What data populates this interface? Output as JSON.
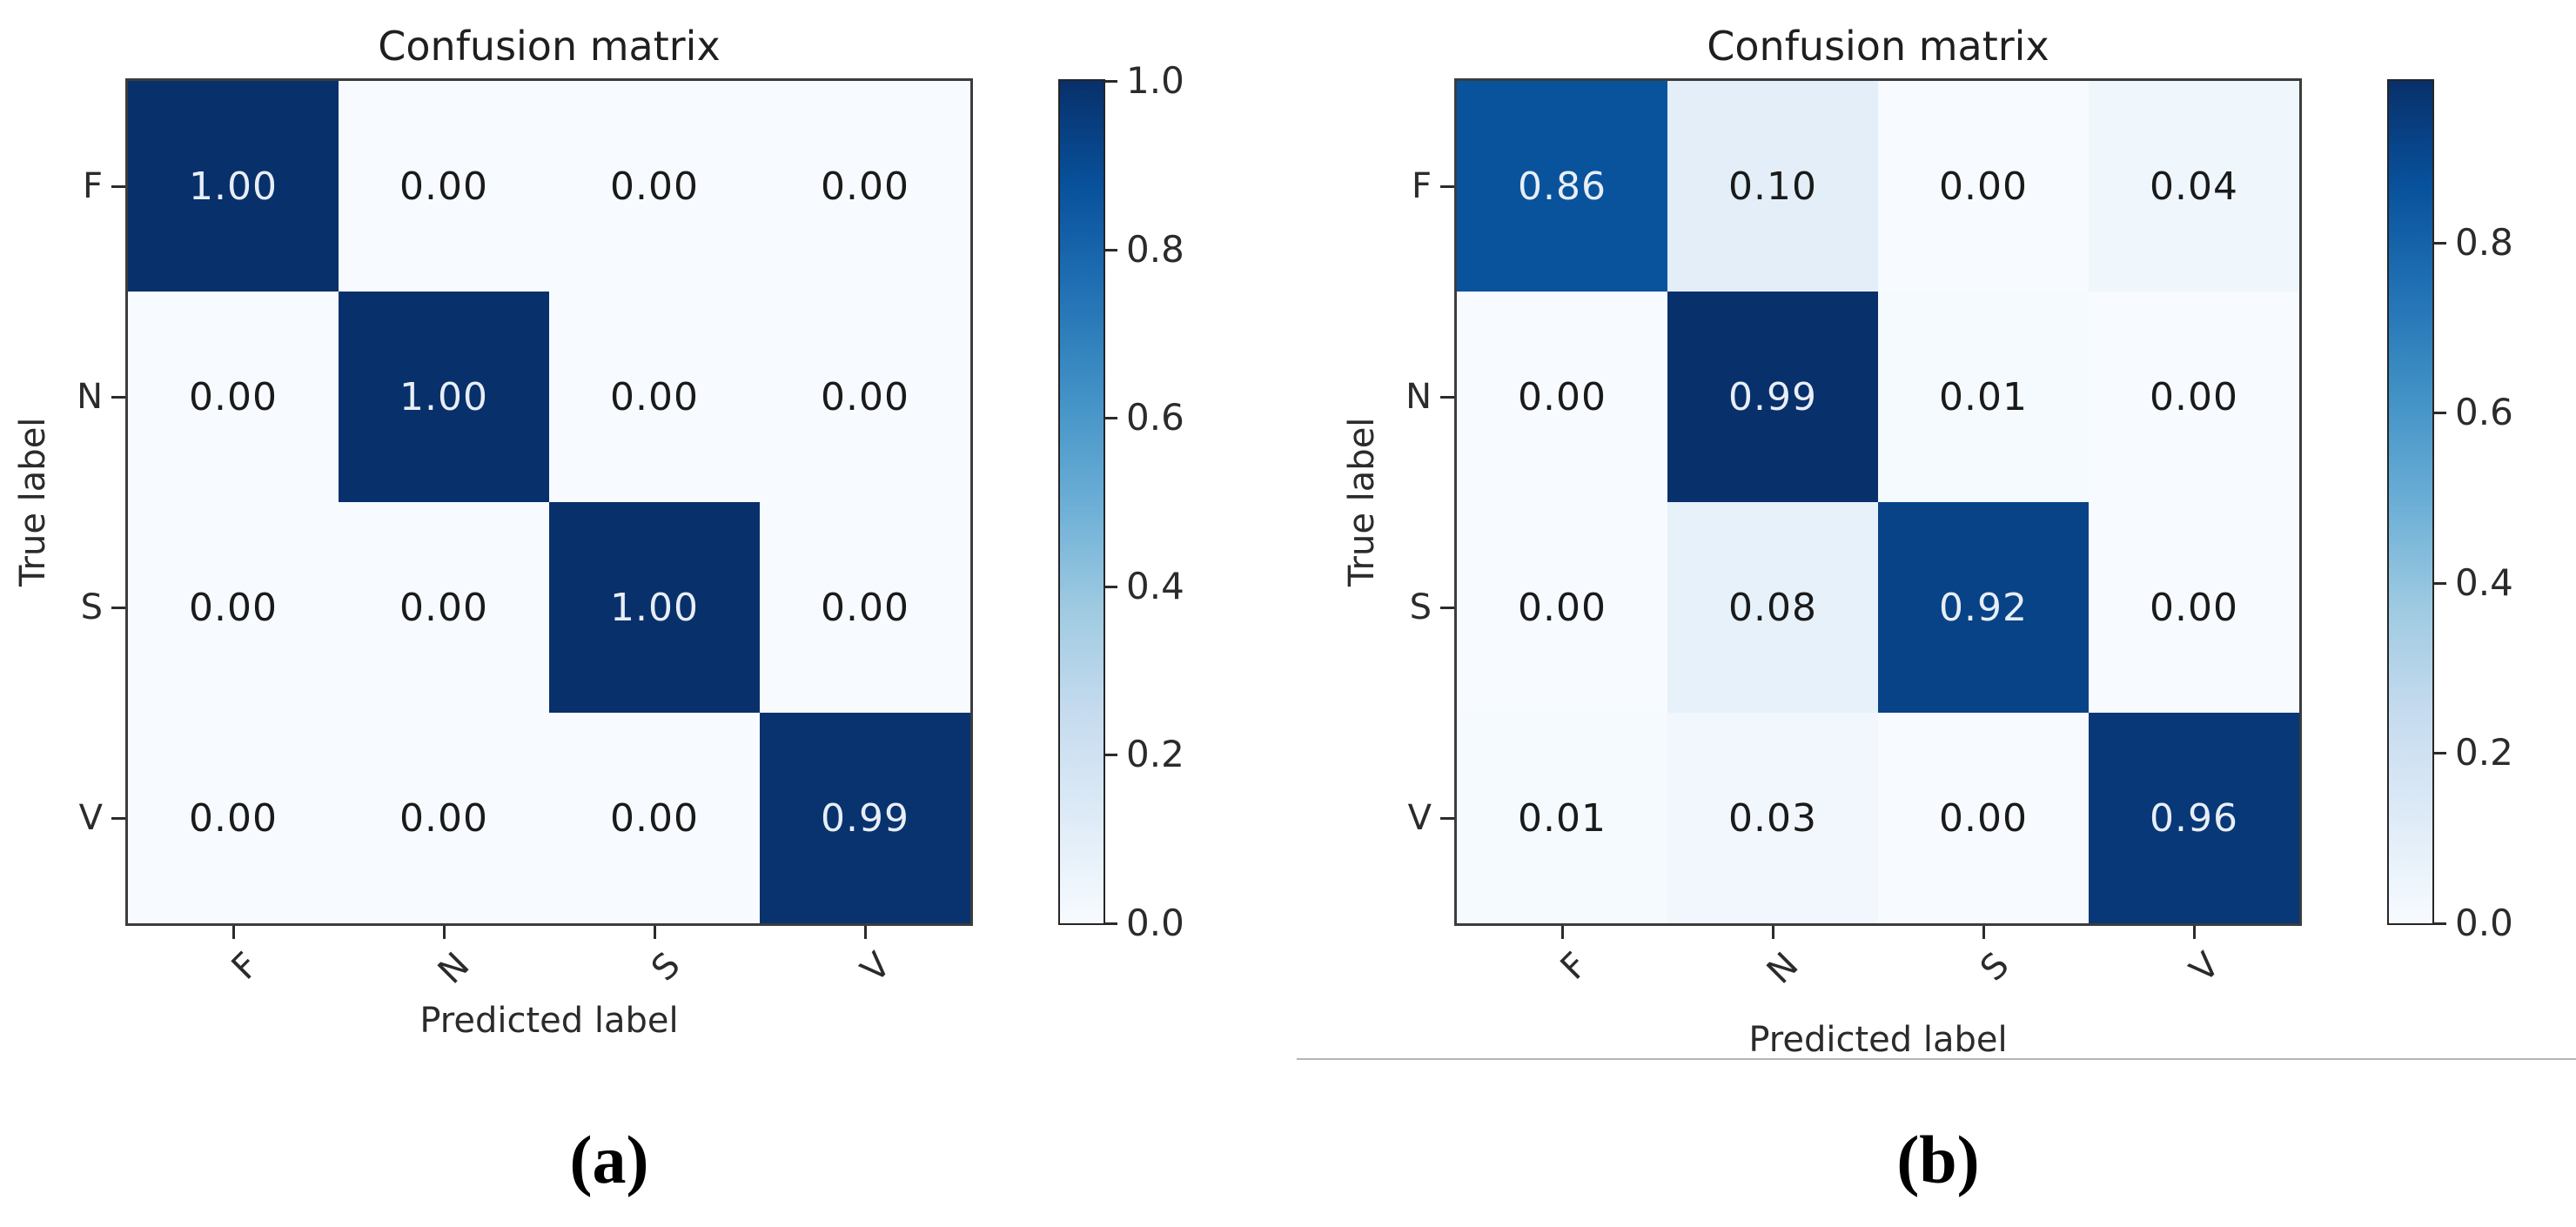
{
  "figures": [
    {
      "id": "a",
      "title": "Confusion matrix",
      "xlabel": "Predicted label",
      "ylabel": "True label",
      "caption": "(a)",
      "classes": [
        "F",
        "N",
        "S",
        "V"
      ],
      "cells": [
        [
          "1.00",
          "0.00",
          "0.00",
          "0.00"
        ],
        [
          "0.00",
          "1.00",
          "0.00",
          "0.00"
        ],
        [
          "0.00",
          "0.00",
          "1.00",
          "0.00"
        ],
        [
          "0.00",
          "0.00",
          "0.00",
          "0.99"
        ]
      ],
      "vmax": 1.0,
      "colorbar": {
        "ticks": [
          "1.0",
          "0.8",
          "0.6",
          "0.4",
          "0.2",
          "0.0"
        ]
      }
    },
    {
      "id": "b",
      "title": "Confusion matrix",
      "xlabel": "Predicted label",
      "ylabel": "True label",
      "caption": "(b)",
      "classes": [
        "F",
        "N",
        "S",
        "V"
      ],
      "cells": [
        [
          "0.86",
          "0.10",
          "0.00",
          "0.04"
        ],
        [
          "0.00",
          "0.99",
          "0.01",
          "0.00"
        ],
        [
          "0.00",
          "0.08",
          "0.92",
          "0.00"
        ],
        [
          "0.01",
          "0.03",
          "0.00",
          "0.96"
        ]
      ],
      "vmax": 0.99,
      "colorbar": {
        "ticks": [
          "0.8",
          "0.6",
          "0.4",
          "0.2",
          "0.0"
        ]
      }
    }
  ],
  "colors": {
    "colormap_name": "Blues",
    "colormap_anchors": [
      "#f7fbff",
      "#deebf7",
      "#c6dbef",
      "#9ecae1",
      "#6baed6",
      "#4292c6",
      "#2171b5",
      "#08519c",
      "#08306b"
    ],
    "cell_text_light": "#e9eef6",
    "cell_text_dark": "#1a1a1a",
    "axis_text": "#2b2b2b",
    "divider": "#b5b5b5"
  },
  "chart_data": [
    {
      "type": "heatmap",
      "title": "Confusion matrix",
      "xlabel": "Predicted label",
      "ylabel": "True label",
      "x_categories": [
        "F",
        "N",
        "S",
        "V"
      ],
      "y_categories": [
        "F",
        "N",
        "S",
        "V"
      ],
      "values": [
        [
          1.0,
          0.0,
          0.0,
          0.0
        ],
        [
          0.0,
          1.0,
          0.0,
          0.0
        ],
        [
          0.0,
          0.0,
          1.0,
          0.0
        ],
        [
          0.0,
          0.0,
          0.0,
          0.99
        ]
      ],
      "colormap": "Blues",
      "vmin": 0.0,
      "vmax": 1.0,
      "colorbar_ticks": [
        1.0,
        0.8,
        0.6,
        0.4,
        0.2,
        0.0
      ],
      "legend_position": "right-colorbar",
      "grid": false,
      "caption": "(a)"
    },
    {
      "type": "heatmap",
      "title": "Confusion matrix",
      "xlabel": "Predicted label",
      "ylabel": "True label",
      "x_categories": [
        "F",
        "N",
        "S",
        "V"
      ],
      "y_categories": [
        "F",
        "N",
        "S",
        "V"
      ],
      "values": [
        [
          0.86,
          0.1,
          0.0,
          0.04
        ],
        [
          0.0,
          0.99,
          0.01,
          0.0
        ],
        [
          0.0,
          0.08,
          0.92,
          0.0
        ],
        [
          0.01,
          0.03,
          0.0,
          0.96
        ]
      ],
      "colormap": "Blues",
      "vmin": 0.0,
      "vmax": 0.99,
      "colorbar_ticks": [
        0.8,
        0.6,
        0.4,
        0.2,
        0.0
      ],
      "legend_position": "right-colorbar",
      "grid": false,
      "caption": "(b)"
    }
  ]
}
